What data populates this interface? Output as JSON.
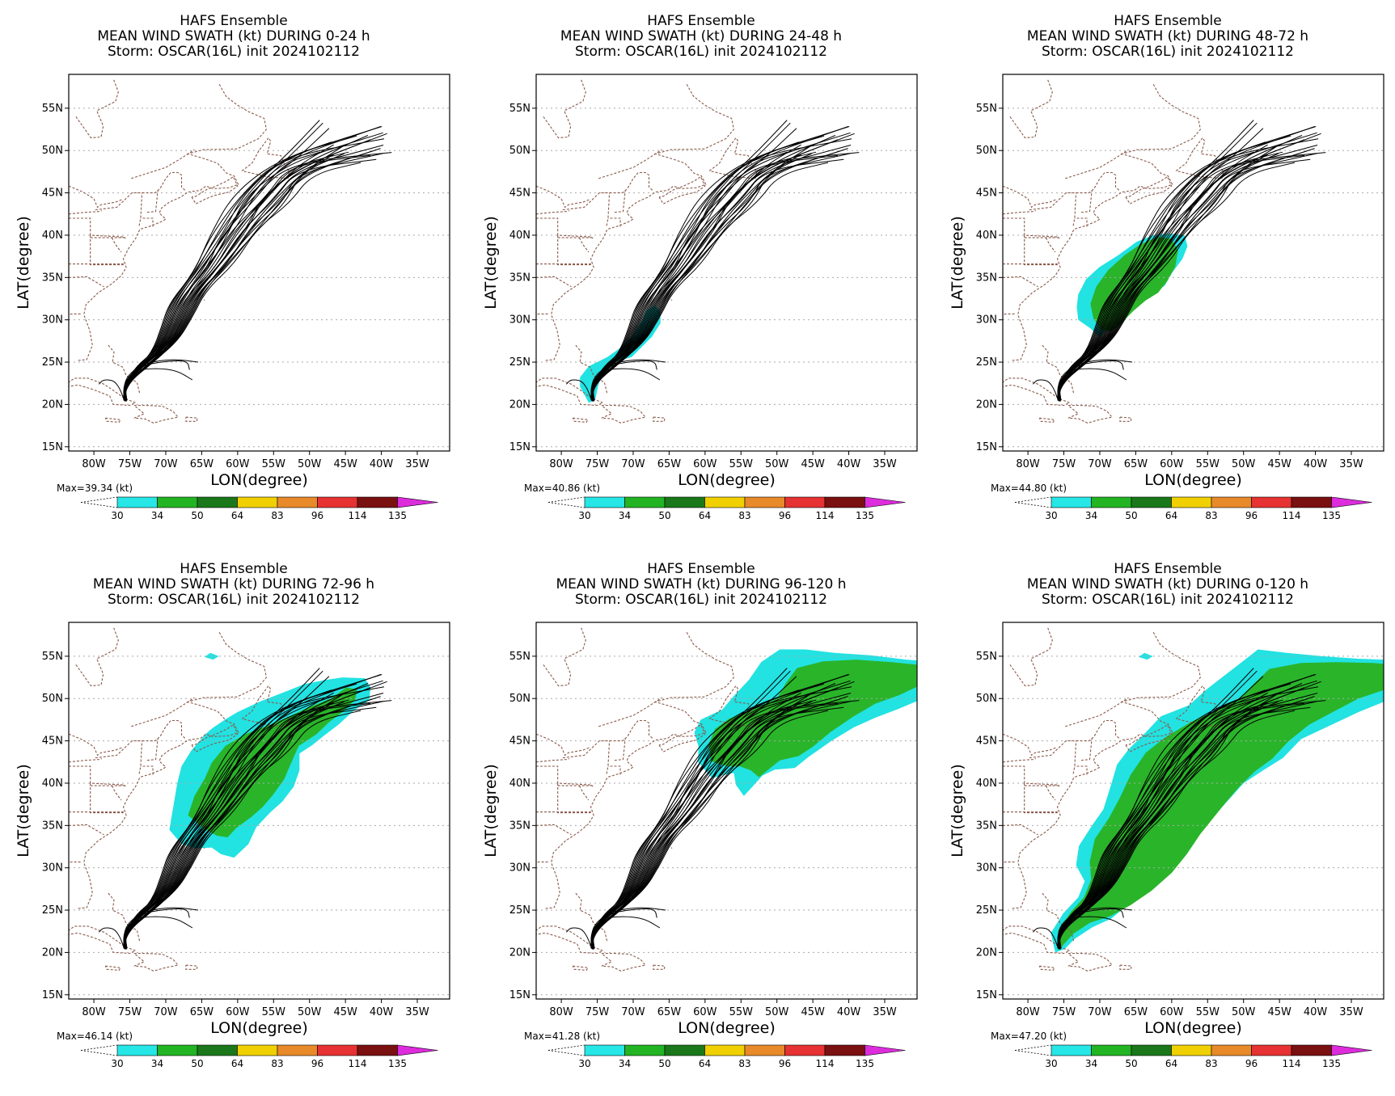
{
  "figure": {
    "lat_ticks": [
      "15N",
      "20N",
      "25N",
      "30N",
      "35N",
      "40N",
      "45N",
      "50N",
      "55N"
    ],
    "lon_ticks": [
      "80W",
      "75W",
      "70W",
      "65W",
      "60W",
      "55W",
      "50W",
      "45W",
      "40W",
      "35W"
    ],
    "xlabel": "LON(degree)",
    "ylabel": "LAT(degree)",
    "colorbar": {
      "levels": [
        "30",
        "34",
        "50",
        "64",
        "83",
        "96",
        "114",
        "135"
      ],
      "colors": [
        "#26e6e6",
        "#22b422",
        "#1a781a",
        "#f0d000",
        "#e88a2a",
        "#e63232",
        "#7a1010",
        "#dc2cdc"
      ]
    },
    "swath_colors": {
      "ts": "#22e2e2",
      "gale": "#2ab42a"
    },
    "coast_color": "#8a5a4a",
    "track_color": "#000000"
  },
  "panels": [
    {
      "title1": "HAFS Ensemble",
      "title2": "MEAN WIND SWATH (kt) DURING  0-24 h",
      "title3": "Storm: OSCAR(16L) init 2024102112",
      "max_label": "Max=39.34 (kt)",
      "swath": "none"
    },
    {
      "title1": "HAFS Ensemble",
      "title2": "MEAN WIND SWATH (kt) DURING 24-48 h",
      "title3": "Storm: OSCAR(16L) init 2024102112",
      "max_label": "Max=40.86 (kt)",
      "swath": "p2"
    },
    {
      "title1": "HAFS Ensemble",
      "title2": "MEAN WIND SWATH (kt) DURING 48-72 h",
      "title3": "Storm: OSCAR(16L) init 2024102112",
      "max_label": "Max=44.80 (kt)",
      "swath": "p3"
    },
    {
      "title1": "HAFS Ensemble",
      "title2": "MEAN WIND SWATH (kt) DURING 72-96 h",
      "title3": "Storm: OSCAR(16L) init 2024102112",
      "max_label": "Max=46.14 (kt)",
      "swath": "p4"
    },
    {
      "title1": "HAFS Ensemble",
      "title2": "MEAN WIND SWATH (kt) DURING 96-120 h",
      "title3": "Storm: OSCAR(16L) init 2024102112",
      "max_label": "Max=41.28 (kt)",
      "swath": "p5"
    },
    {
      "title1": "HAFS Ensemble",
      "title2": "MEAN WIND SWATH (kt) DURING 0-120 h",
      "title3": "Storm: OSCAR(16L) init 2024102112",
      "max_label": "Max=47.20 (kt)",
      "swath": "p6"
    }
  ]
}
